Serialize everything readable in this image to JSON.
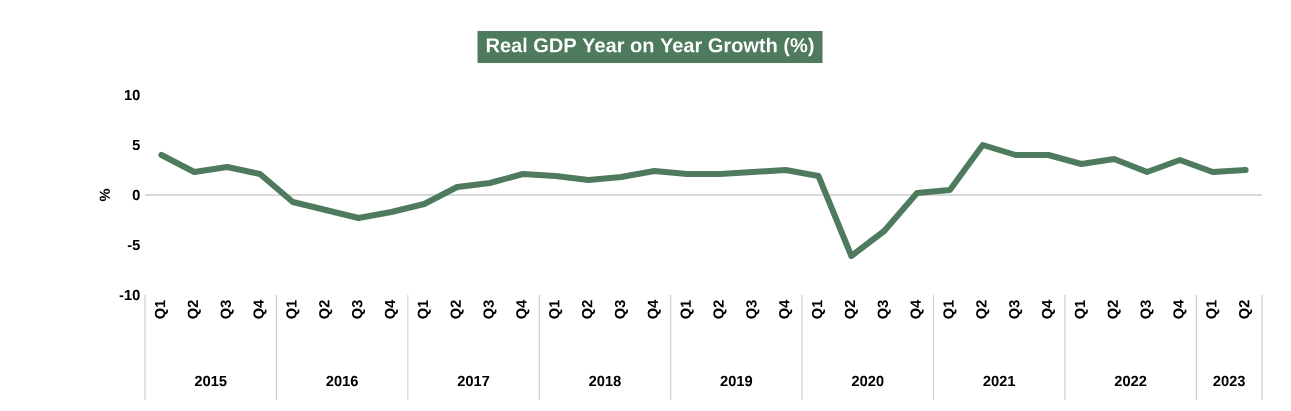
{
  "chart_data": {
    "type": "line",
    "title": "Real GDP Year on Year Growth (%)",
    "ylabel": "%",
    "categories": [
      "Q1",
      "Q2",
      "Q3",
      "Q4",
      "Q1",
      "Q2",
      "Q3",
      "Q4",
      "Q1",
      "Q2",
      "Q3",
      "Q4",
      "Q1",
      "Q2",
      "Q3",
      "Q4",
      "Q1",
      "Q2",
      "Q3",
      "Q4",
      "Q1",
      "Q2",
      "Q3",
      "Q4",
      "Q1",
      "Q2",
      "Q3",
      "Q4",
      "Q1",
      "Q2",
      "Q3",
      "Q4",
      "Q1",
      "Q2"
    ],
    "values": [
      4.0,
      2.3,
      2.8,
      2.1,
      -0.7,
      -1.5,
      -2.3,
      -1.7,
      -0.9,
      0.8,
      1.2,
      2.1,
      1.9,
      1.5,
      1.8,
      2.4,
      2.1,
      2.1,
      2.3,
      2.5,
      1.9,
      -6.1,
      -3.6,
      0.2,
      0.5,
      5.0,
      4.0,
      4.0,
      3.1,
      3.6,
      2.3,
      3.5,
      2.3,
      2.5
    ],
    "color": "#4e7a5e",
    "ylim": [
      -10,
      10
    ],
    "yticks": [
      -10,
      -5,
      0,
      5,
      10
    ],
    "ref_lines": [
      {
        "axis": "y",
        "value": 0,
        "color": "#d9d9d9"
      }
    ],
    "annotations": [
      "2015",
      "2016",
      "2017",
      "2018",
      "2019",
      "2020",
      "2021",
      "2022",
      "2023"
    ]
  }
}
